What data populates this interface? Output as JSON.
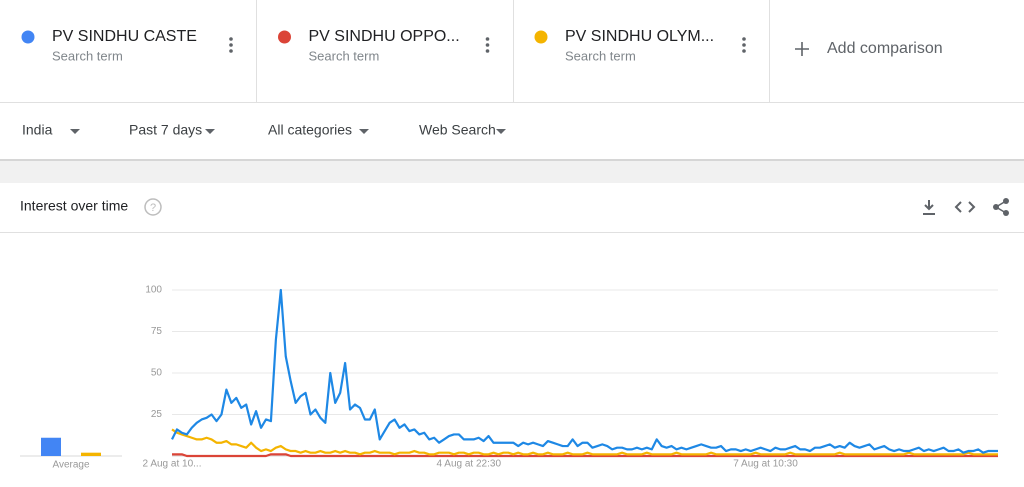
{
  "add_comparison": "Add comparison",
  "term_subtitles": [
    "Search term",
    "Search term",
    "Search term"
  ],
  "filters": [
    "India",
    "Past 7 days",
    "All categories",
    "Web Search"
  ],
  "panel_title": "Interest over time",
  "chart_data": {
    "type": "line",
    "categories": [
      "2 Aug at 10...",
      null,
      null,
      null,
      null,
      null,
      null,
      null,
      null,
      null,
      null,
      null,
      null,
      null,
      null,
      null,
      null,
      null,
      null,
      null,
      null,
      null,
      null,
      null,
      null,
      null,
      null,
      null,
      null,
      null,
      null,
      null,
      null,
      null,
      null,
      null,
      null,
      null,
      null,
      null,
      null,
      null,
      null,
      null,
      null,
      null,
      null,
      null,
      null,
      null,
      null,
      null,
      null,
      null,
      null,
      null,
      null,
      null,
      null,
      null,
      "4 Aug at 22:30",
      null,
      null,
      null,
      null,
      null,
      null,
      null,
      null,
      null,
      null,
      null,
      null,
      null,
      null,
      null,
      null,
      null,
      null,
      null,
      null,
      null,
      null,
      null,
      null,
      null,
      null,
      null,
      null,
      null,
      null,
      null,
      null,
      null,
      null,
      null,
      null,
      null,
      null,
      null,
      null,
      null,
      null,
      null,
      null,
      null,
      null,
      null,
      null,
      null,
      null,
      null,
      null,
      null,
      null,
      null,
      null,
      null,
      null,
      null,
      "7 Aug at 10:30",
      null,
      null,
      null,
      null,
      null,
      null,
      null,
      null,
      null,
      null,
      null,
      null,
      null,
      null,
      null,
      null,
      null,
      null,
      null,
      null,
      null,
      null,
      null,
      null,
      null,
      null,
      null,
      null,
      null,
      null,
      null,
      null,
      null,
      null,
      null,
      null,
      null,
      null,
      null,
      null,
      null,
      null,
      null,
      null,
      null,
      null,
      null
    ],
    "series": [
      {
        "name": "PV SINDHU CASTE",
        "color": "#4285f4",
        "line_color": "#1e88e5",
        "values": [
          10,
          16,
          14,
          13,
          17,
          20,
          22,
          23,
          25,
          21,
          25,
          40,
          32,
          35,
          29,
          31,
          19,
          27,
          17,
          22,
          21,
          70,
          100,
          60,
          45,
          32,
          36,
          38,
          25,
          28,
          23,
          20,
          50,
          32,
          38,
          56,
          28,
          31,
          29,
          22,
          22,
          28,
          10,
          15,
          20,
          22,
          17,
          19,
          15,
          16,
          13,
          14,
          10,
          11,
          8,
          10,
          12,
          13,
          13,
          10,
          10,
          10,
          11,
          9,
          12,
          8,
          8,
          8,
          8,
          8,
          6,
          8,
          7,
          8,
          7,
          6,
          9,
          8,
          7,
          6,
          6,
          10,
          6,
          8,
          8,
          5,
          6,
          7,
          6,
          4,
          5,
          5,
          4,
          4,
          5,
          4,
          5,
          4,
          10,
          6,
          5,
          6,
          4,
          5,
          4,
          5,
          6,
          7,
          6,
          5,
          5,
          6,
          3,
          4,
          4,
          3,
          4,
          3,
          4,
          5,
          4,
          3,
          5,
          4,
          4,
          5,
          6,
          4,
          4,
          3,
          5,
          5,
          6,
          7,
          5,
          6,
          5,
          8,
          6,
          5,
          6,
          7,
          4,
          5,
          6,
          4,
          3,
          4,
          3,
          3,
          4,
          5,
          3,
          4,
          3,
          4,
          5,
          3,
          3,
          4,
          2,
          3,
          3,
          4,
          2,
          3,
          3,
          3
        ]
      },
      {
        "name": "PV SINDHU OPPO...",
        "color": "#db4437",
        "line_color": "#db4437",
        "values": [
          1,
          1,
          1,
          0,
          0,
          0,
          0,
          0,
          0,
          0,
          0,
          0,
          0,
          0,
          0,
          0,
          0,
          0,
          0,
          0,
          1,
          1,
          1,
          1,
          0,
          0,
          0,
          0,
          0,
          0,
          0,
          0,
          0,
          0,
          0,
          0,
          0,
          0,
          0,
          0,
          0,
          0,
          0,
          0,
          0,
          0,
          0,
          0,
          0,
          0,
          0,
          0,
          0,
          0,
          0,
          0,
          0,
          0,
          0,
          0,
          0,
          0,
          0,
          0,
          0,
          0,
          0,
          0,
          0,
          0,
          0,
          0,
          0,
          0,
          0,
          0,
          0,
          0,
          0,
          0,
          0,
          0,
          0,
          0,
          0,
          0,
          0,
          0,
          0,
          0,
          0,
          0,
          0,
          0,
          0,
          0,
          0,
          0,
          0,
          0,
          0,
          0,
          0,
          0,
          0,
          0,
          0,
          0,
          0,
          0,
          0,
          0,
          0,
          0,
          0,
          0,
          0,
          0,
          0,
          0,
          0,
          0,
          0,
          0,
          0,
          0,
          0,
          0,
          0,
          0,
          0,
          0,
          0,
          0,
          0,
          0,
          0,
          0,
          0,
          0,
          0,
          0,
          0,
          0,
          0,
          0,
          0,
          0,
          0,
          0,
          0,
          0,
          0,
          0,
          0,
          0,
          0,
          0,
          0,
          0,
          0,
          0,
          0,
          0,
          0,
          0,
          0,
          0
        ]
      },
      {
        "name": "PV SINDHU OLYM...",
        "color": "#f4b400",
        "line_color": "#f4b400",
        "values": [
          16,
          14,
          13,
          12,
          11,
          10,
          10,
          11,
          10,
          8,
          8,
          9,
          7,
          7,
          6,
          5,
          8,
          5,
          3,
          4,
          3,
          5,
          6,
          4,
          3,
          3,
          2,
          3,
          2,
          2,
          3,
          2,
          2,
          3,
          2,
          3,
          2,
          2,
          1,
          2,
          2,
          3,
          2,
          2,
          2,
          1,
          2,
          2,
          2,
          3,
          2,
          2,
          1,
          1,
          2,
          2,
          2,
          1,
          2,
          2,
          1,
          2,
          2,
          1,
          1,
          2,
          1,
          2,
          2,
          1,
          2,
          1,
          1,
          2,
          1,
          1,
          2,
          1,
          1,
          1,
          2,
          1,
          1,
          1,
          2,
          1,
          1,
          1,
          1,
          1,
          1,
          2,
          1,
          1,
          1,
          1,
          2,
          1,
          1,
          1,
          1,
          1,
          2,
          1,
          1,
          1,
          1,
          1,
          1,
          2,
          1,
          1,
          1,
          1,
          1,
          1,
          1,
          1,
          2,
          1,
          1,
          1,
          1,
          1,
          1,
          2,
          1,
          1,
          1,
          1,
          1,
          1,
          1,
          1,
          1,
          2,
          1,
          1,
          1,
          1,
          1,
          1,
          1,
          1,
          1,
          1,
          1,
          1,
          1,
          2,
          1,
          1,
          1,
          1,
          1,
          1,
          1,
          1,
          1,
          1,
          1,
          2,
          1,
          1,
          1,
          1,
          1,
          1
        ]
      }
    ],
    "averages": {
      "label": "Average",
      "values": [
        11,
        0,
        2
      ]
    },
    "ylim": [
      0,
      100
    ],
    "yticks": [
      25,
      50,
      75,
      100
    ],
    "grid": true
  }
}
